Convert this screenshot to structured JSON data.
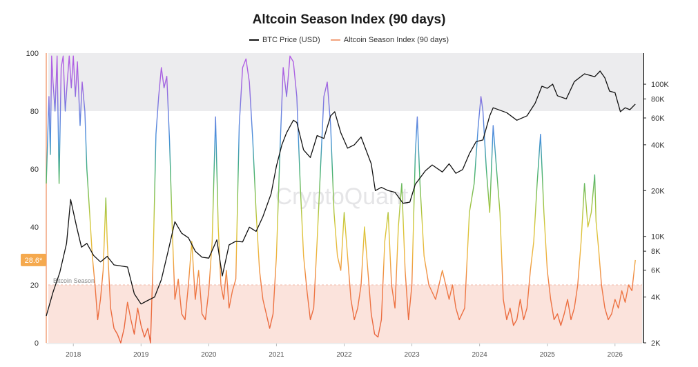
{
  "chart_data": {
    "type": "line",
    "title": "Altcoin Season Index (90 days)",
    "watermark": "CryptoQuant",
    "legend_placement": "top-center",
    "grid": false,
    "x_range": [
      2017.6,
      2026.4
    ],
    "x_ticks": [
      "2018",
      "2019",
      "2020",
      "2021",
      "2022",
      "2023",
      "2024",
      "2025",
      "2026"
    ],
    "y_left": {
      "range": [
        0,
        100
      ],
      "ticks": [
        "0",
        "20",
        "40",
        "60",
        "80",
        "100"
      ]
    },
    "y_right": {
      "scale": "log",
      "range": [
        2000,
        160000
      ],
      "ticks": [
        {
          "label": "2K",
          "value": 2000
        },
        {
          "label": "4K",
          "value": 4000
        },
        {
          "label": "6K",
          "value": 6000
        },
        {
          "label": "8K",
          "value": 8000
        },
        {
          "label": "10K",
          "value": 10000
        },
        {
          "label": "20K",
          "value": 20000
        },
        {
          "label": "40K",
          "value": 40000
        },
        {
          "label": "60K",
          "value": 60000
        },
        {
          "label": "80K",
          "value": 80000
        },
        {
          "label": "100K",
          "value": 100000
        }
      ]
    },
    "bands": [
      {
        "label": "",
        "from": 80,
        "to": 100,
        "color": "#ececee"
      },
      {
        "label": "Bitcoin Season",
        "from": 0,
        "to": 20,
        "color": "#fbe3dc"
      }
    ],
    "current_value_label": "28.6*",
    "series": [
      {
        "name": "BTC Price (USD)",
        "axis": "right",
        "color": "#111111",
        "points": [
          [
            2017.6,
            3000
          ],
          [
            2017.7,
            4300
          ],
          [
            2017.8,
            5800
          ],
          [
            2017.9,
            9000
          ],
          [
            2017.96,
            17500
          ],
          [
            2018.05,
            11500
          ],
          [
            2018.12,
            8500
          ],
          [
            2018.2,
            9000
          ],
          [
            2018.3,
            7500
          ],
          [
            2018.4,
            6800
          ],
          [
            2018.5,
            7400
          ],
          [
            2018.6,
            6500
          ],
          [
            2018.7,
            6400
          ],
          [
            2018.8,
            6300
          ],
          [
            2018.9,
            4200
          ],
          [
            2019.0,
            3600
          ],
          [
            2019.1,
            3800
          ],
          [
            2019.2,
            4000
          ],
          [
            2019.3,
            5200
          ],
          [
            2019.4,
            8000
          ],
          [
            2019.5,
            12500
          ],
          [
            2019.6,
            10500
          ],
          [
            2019.7,
            9800
          ],
          [
            2019.8,
            8000
          ],
          [
            2019.9,
            7300
          ],
          [
            2020.0,
            7200
          ],
          [
            2020.12,
            9500
          ],
          [
            2020.2,
            5500
          ],
          [
            2020.3,
            8800
          ],
          [
            2020.4,
            9300
          ],
          [
            2020.5,
            9200
          ],
          [
            2020.6,
            11500
          ],
          [
            2020.7,
            10800
          ],
          [
            2020.8,
            13500
          ],
          [
            2020.92,
            19000
          ],
          [
            2021.0,
            29000
          ],
          [
            2021.08,
            40000
          ],
          [
            2021.15,
            48000
          ],
          [
            2021.25,
            58000
          ],
          [
            2021.3,
            56000
          ],
          [
            2021.4,
            37000
          ],
          [
            2021.5,
            33000
          ],
          [
            2021.6,
            46000
          ],
          [
            2021.7,
            44000
          ],
          [
            2021.8,
            62000
          ],
          [
            2021.86,
            66000
          ],
          [
            2021.95,
            48000
          ],
          [
            2022.05,
            38000
          ],
          [
            2022.15,
            40000
          ],
          [
            2022.25,
            45000
          ],
          [
            2022.4,
            30000
          ],
          [
            2022.46,
            20000
          ],
          [
            2022.55,
            21000
          ],
          [
            2022.65,
            20000
          ],
          [
            2022.75,
            19500
          ],
          [
            2022.87,
            16500
          ],
          [
            2022.97,
            16800
          ],
          [
            2023.05,
            22000
          ],
          [
            2023.2,
            27000
          ],
          [
            2023.3,
            29500
          ],
          [
            2023.45,
            26500
          ],
          [
            2023.55,
            30000
          ],
          [
            2023.65,
            26000
          ],
          [
            2023.75,
            27500
          ],
          [
            2023.85,
            35000
          ],
          [
            2023.95,
            42000
          ],
          [
            2024.05,
            43000
          ],
          [
            2024.15,
            62000
          ],
          [
            2024.2,
            70000
          ],
          [
            2024.4,
            65000
          ],
          [
            2024.55,
            58000
          ],
          [
            2024.7,
            62000
          ],
          [
            2024.82,
            75000
          ],
          [
            2024.92,
            97000
          ],
          [
            2025.0,
            94000
          ],
          [
            2025.08,
            100000
          ],
          [
            2025.15,
            84000
          ],
          [
            2025.28,
            80000
          ],
          [
            2025.4,
            104000
          ],
          [
            2025.55,
            117000
          ],
          [
            2025.7,
            112000
          ],
          [
            2025.78,
            122000
          ],
          [
            2025.85,
            110000
          ],
          [
            2025.92,
            90000
          ],
          [
            2026.0,
            88000
          ],
          [
            2026.08,
            66000
          ],
          [
            2026.15,
            70000
          ],
          [
            2026.22,
            68000
          ],
          [
            2026.3,
            74000
          ]
        ]
      },
      {
        "name": "Altcoin Season Index (90 days)",
        "axis": "left",
        "color": "#f2a27c",
        "points": [
          [
            2017.6,
            55
          ],
          [
            2017.64,
            85
          ],
          [
            2017.66,
            65
          ],
          [
            2017.68,
            99
          ],
          [
            2017.7,
            90
          ],
          [
            2017.73,
            80
          ],
          [
            2017.76,
            99
          ],
          [
            2017.79,
            55
          ],
          [
            2017.82,
            95
          ],
          [
            2017.85,
            99
          ],
          [
            2017.88,
            80
          ],
          [
            2017.91,
            90
          ],
          [
            2017.94,
            99
          ],
          [
            2017.97,
            88
          ],
          [
            2018.0,
            99
          ],
          [
            2018.03,
            85
          ],
          [
            2018.06,
            97
          ],
          [
            2018.1,
            75
          ],
          [
            2018.13,
            90
          ],
          [
            2018.17,
            80
          ],
          [
            2018.2,
            60
          ],
          [
            2018.24,
            45
          ],
          [
            2018.28,
            30
          ],
          [
            2018.32,
            20
          ],
          [
            2018.36,
            8
          ],
          [
            2018.4,
            15
          ],
          [
            2018.44,
            25
          ],
          [
            2018.48,
            50
          ],
          [
            2018.5,
            35
          ],
          [
            2018.55,
            12
          ],
          [
            2018.6,
            5
          ],
          [
            2018.65,
            3
          ],
          [
            2018.7,
            0
          ],
          [
            2018.75,
            5
          ],
          [
            2018.8,
            14
          ],
          [
            2018.85,
            8
          ],
          [
            2018.9,
            3
          ],
          [
            2018.95,
            12
          ],
          [
            2019.0,
            6
          ],
          [
            2019.05,
            2
          ],
          [
            2019.1,
            5
          ],
          [
            2019.14,
            0
          ],
          [
            2019.18,
            30
          ],
          [
            2019.22,
            72
          ],
          [
            2019.26,
            85
          ],
          [
            2019.3,
            95
          ],
          [
            2019.34,
            88
          ],
          [
            2019.38,
            92
          ],
          [
            2019.42,
            70
          ],
          [
            2019.46,
            40
          ],
          [
            2019.5,
            15
          ],
          [
            2019.55,
            22
          ],
          [
            2019.6,
            10
          ],
          [
            2019.65,
            8
          ],
          [
            2019.7,
            20
          ],
          [
            2019.75,
            35
          ],
          [
            2019.8,
            15
          ],
          [
            2019.85,
            25
          ],
          [
            2019.9,
            10
          ],
          [
            2019.95,
            8
          ],
          [
            2020.0,
            18
          ],
          [
            2020.05,
            35
          ],
          [
            2020.1,
            78
          ],
          [
            2020.14,
            40
          ],
          [
            2020.18,
            20
          ],
          [
            2020.22,
            15
          ],
          [
            2020.26,
            25
          ],
          [
            2020.3,
            12
          ],
          [
            2020.35,
            18
          ],
          [
            2020.4,
            22
          ],
          [
            2020.45,
            75
          ],
          [
            2020.5,
            95
          ],
          [
            2020.55,
            98
          ],
          [
            2020.6,
            90
          ],
          [
            2020.65,
            70
          ],
          [
            2020.7,
            45
          ],
          [
            2020.75,
            25
          ],
          [
            2020.8,
            15
          ],
          [
            2020.85,
            10
          ],
          [
            2020.9,
            5
          ],
          [
            2020.95,
            10
          ],
          [
            2021.0,
            30
          ],
          [
            2021.05,
            65
          ],
          [
            2021.1,
            95
          ],
          [
            2021.15,
            85
          ],
          [
            2021.2,
            99
          ],
          [
            2021.25,
            97
          ],
          [
            2021.3,
            85
          ],
          [
            2021.35,
            55
          ],
          [
            2021.4,
            30
          ],
          [
            2021.45,
            18
          ],
          [
            2021.5,
            8
          ],
          [
            2021.55,
            12
          ],
          [
            2021.6,
            35
          ],
          [
            2021.65,
            60
          ],
          [
            2021.7,
            85
          ],
          [
            2021.75,
            90
          ],
          [
            2021.8,
            75
          ],
          [
            2021.85,
            45
          ],
          [
            2021.9,
            30
          ],
          [
            2021.95,
            25
          ],
          [
            2022.0,
            45
          ],
          [
            2022.05,
            30
          ],
          [
            2022.1,
            15
          ],
          [
            2022.15,
            8
          ],
          [
            2022.2,
            12
          ],
          [
            2022.25,
            20
          ],
          [
            2022.3,
            40
          ],
          [
            2022.35,
            25
          ],
          [
            2022.4,
            10
          ],
          [
            2022.45,
            3
          ],
          [
            2022.5,
            2
          ],
          [
            2022.55,
            8
          ],
          [
            2022.6,
            35
          ],
          [
            2022.65,
            45
          ],
          [
            2022.7,
            20
          ],
          [
            2022.75,
            12
          ],
          [
            2022.8,
            40
          ],
          [
            2022.85,
            55
          ],
          [
            2022.9,
            25
          ],
          [
            2022.95,
            8
          ],
          [
            2023.0,
            20
          ],
          [
            2023.05,
            65
          ],
          [
            2023.08,
            78
          ],
          [
            2023.12,
            55
          ],
          [
            2023.18,
            30
          ],
          [
            2023.25,
            20
          ],
          [
            2023.35,
            15
          ],
          [
            2023.45,
            25
          ],
          [
            2023.55,
            15
          ],
          [
            2023.6,
            20
          ],
          [
            2023.65,
            12
          ],
          [
            2023.7,
            8
          ],
          [
            2023.78,
            12
          ],
          [
            2023.85,
            45
          ],
          [
            2023.92,
            55
          ],
          [
            2023.98,
            75
          ],
          [
            2024.02,
            85
          ],
          [
            2024.05,
            80
          ],
          [
            2024.1,
            60
          ],
          [
            2024.15,
            45
          ],
          [
            2024.2,
            75
          ],
          [
            2024.25,
            60
          ],
          [
            2024.3,
            45
          ],
          [
            2024.35,
            15
          ],
          [
            2024.4,
            8
          ],
          [
            2024.45,
            12
          ],
          [
            2024.5,
            6
          ],
          [
            2024.55,
            8
          ],
          [
            2024.6,
            15
          ],
          [
            2024.65,
            8
          ],
          [
            2024.7,
            12
          ],
          [
            2024.75,
            25
          ],
          [
            2024.8,
            35
          ],
          [
            2024.85,
            55
          ],
          [
            2024.9,
            72
          ],
          [
            2024.95,
            45
          ],
          [
            2025.0,
            25
          ],
          [
            2025.05,
            15
          ],
          [
            2025.1,
            8
          ],
          [
            2025.15,
            10
          ],
          [
            2025.2,
            6
          ],
          [
            2025.25,
            10
          ],
          [
            2025.3,
            15
          ],
          [
            2025.35,
            8
          ],
          [
            2025.4,
            12
          ],
          [
            2025.45,
            20
          ],
          [
            2025.5,
            35
          ],
          [
            2025.55,
            55
          ],
          [
            2025.6,
            40
          ],
          [
            2025.65,
            45
          ],
          [
            2025.7,
            58
          ],
          [
            2025.72,
            42
          ],
          [
            2025.76,
            32
          ],
          [
            2025.8,
            20
          ],
          [
            2025.85,
            12
          ],
          [
            2025.9,
            8
          ],
          [
            2025.95,
            10
          ],
          [
            2026.0,
            15
          ],
          [
            2026.05,
            12
          ],
          [
            2026.1,
            18
          ],
          [
            2026.15,
            14
          ],
          [
            2026.2,
            20
          ],
          [
            2026.25,
            18
          ],
          [
            2026.3,
            28.6
          ]
        ]
      }
    ]
  }
}
